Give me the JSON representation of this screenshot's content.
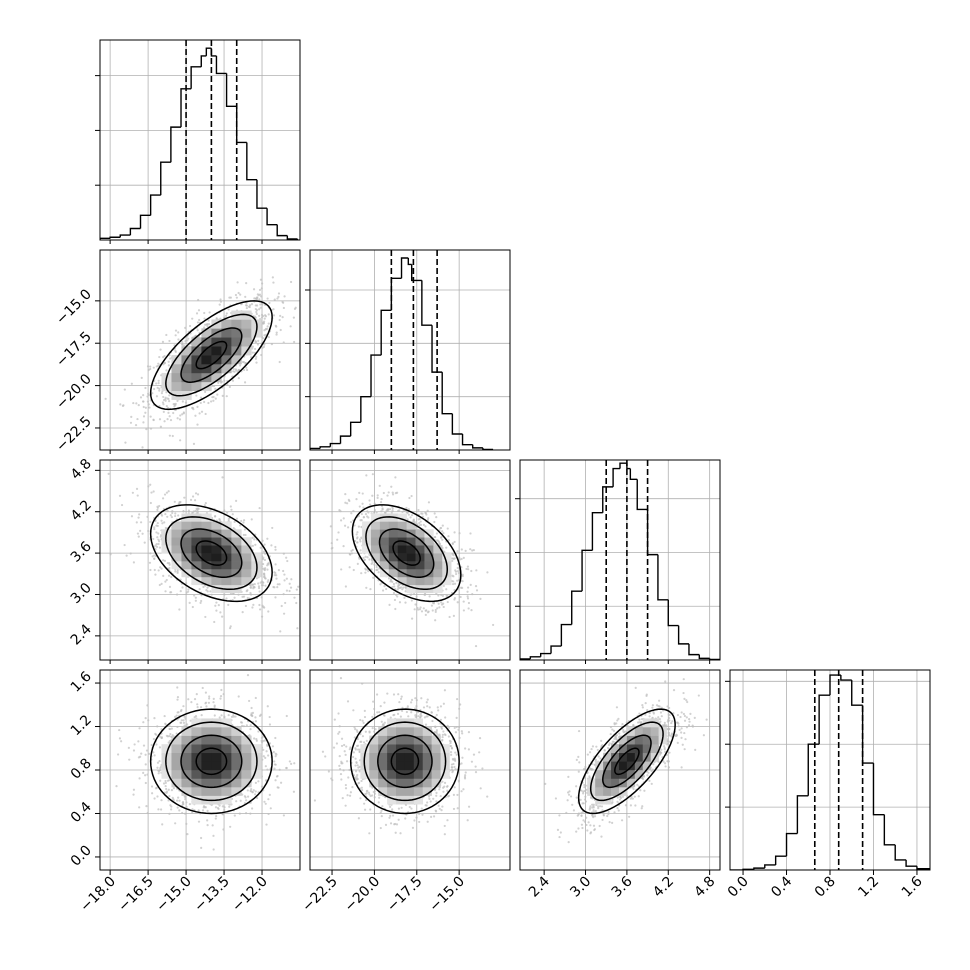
{
  "chart_data": {
    "type": "scatter",
    "layout": "corner-plot",
    "style": {
      "grid": true,
      "line_color": "#000000",
      "hist_style": "step",
      "scatter_color": "#bdbdbd",
      "density_colormap": "greys",
      "quantile_line_style": "dashed"
    },
    "parameters": [
      {
        "range": [
          -18.4,
          -10.5
        ],
        "ticks": [
          -18.0,
          -16.5,
          -15.0,
          -13.5,
          -12.0
        ],
        "tick_labels": [
          "−18.0",
          "−16.5",
          "−15.0",
          "−13.5",
          "−12.0"
        ],
        "quantiles": [
          -15.0,
          -14.0,
          -13.0
        ]
      },
      {
        "range": [
          -23.8,
          -12.0
        ],
        "ticks": [
          -22.5,
          -20.0,
          -17.5,
          -15.0
        ],
        "tick_labels": [
          "−22.5",
          "−20.0",
          "−17.5",
          "−15.0"
        ],
        "quantiles": [
          -19.0,
          -17.7,
          -16.3
        ]
      },
      {
        "range": [
          2.05,
          4.95
        ],
        "ticks": [
          2.4,
          3.0,
          3.6,
          4.2,
          4.8
        ],
        "tick_labels": [
          "2.4",
          "3.0",
          "3.6",
          "4.2",
          "4.8"
        ],
        "quantiles": [
          3.3,
          3.6,
          3.9
        ]
      },
      {
        "range": [
          -0.12,
          1.72
        ],
        "ticks": [
          0.0,
          0.4,
          0.8,
          1.2,
          1.6
        ],
        "tick_labels": [
          "0.0",
          "0.4",
          "0.8",
          "1.2",
          "1.6"
        ],
        "quantiles": [
          0.66,
          0.88,
          1.1
        ]
      }
    ],
    "diagonal_histograms": [
      {
        "bin_edges": [
          -18.4,
          -18.0,
          -17.6,
          -17.2,
          -16.8,
          -16.4,
          -16.0,
          -15.6,
          -15.2,
          -14.8,
          -14.4,
          -14.2,
          -14.0,
          -13.8,
          -13.4,
          -13.0,
          -12.6,
          -12.2,
          -11.8,
          -11.4,
          -11.0,
          -10.6
        ],
        "counts": [
          3,
          5,
          9,
          21,
          45,
          82,
          142,
          206,
          276,
          316,
          336,
          350,
          336,
          304,
          244,
          178,
          110,
          58,
          28,
          8,
          2
        ],
        "y_ticks": [
          100,
          200,
          300
        ],
        "y_max": 365
      },
      {
        "bin_edges": [
          -23.8,
          -23.2,
          -22.6,
          -22.0,
          -21.4,
          -20.8,
          -20.2,
          -19.6,
          -19.0,
          -18.4,
          -18.0,
          -17.8,
          -17.2,
          -16.6,
          -16.0,
          -15.4,
          -14.8,
          -14.2,
          -13.6,
          -13.0
        ],
        "counts": [
          3,
          6,
          12,
          26,
          52,
          100,
          178,
          262,
          322,
          360,
          348,
          318,
          234,
          146,
          68,
          30,
          10,
          4,
          1
        ],
        "y_ticks": [
          100,
          200,
          300
        ],
        "y_max": 375
      },
      {
        "bin_edges": [
          2.05,
          2.2,
          2.35,
          2.5,
          2.65,
          2.8,
          2.95,
          3.1,
          3.25,
          3.4,
          3.5,
          3.6,
          3.65,
          3.75,
          3.9,
          4.05,
          4.2,
          4.35,
          4.5,
          4.65,
          4.8,
          4.95
        ],
        "counts": [
          2,
          6,
          12,
          26,
          66,
          128,
          204,
          274,
          322,
          356,
          366,
          356,
          336,
          280,
          196,
          112,
          64,
          30,
          10,
          3,
          1
        ],
        "y_ticks": [
          100,
          200,
          300
        ],
        "y_max": 372
      },
      {
        "bin_edges": [
          -0.12,
          0.0,
          0.1,
          0.2,
          0.3,
          0.4,
          0.5,
          0.6,
          0.7,
          0.8,
          0.9,
          1.0,
          1.1,
          1.2,
          1.3,
          1.4,
          1.5,
          1.6,
          1.72
        ],
        "counts": [
          0,
          1,
          3,
          8,
          22,
          58,
          118,
          200,
          278,
          310,
          302,
          262,
          170,
          88,
          40,
          16,
          6,
          2
        ],
        "y_ticks": [
          100,
          200,
          300
        ],
        "y_max": 318
      }
    ],
    "pair_panels": [
      {
        "row": 1,
        "col": 0,
        "mean": [
          -14.0,
          -18.2
        ],
        "std": [
          1.2,
          1.6
        ],
        "corr": 0.7
      },
      {
        "row": 2,
        "col": 0,
        "mean": [
          -14.0,
          3.6
        ],
        "std": [
          1.2,
          0.35
        ],
        "corr": -0.4
      },
      {
        "row": 2,
        "col": 1,
        "mean": [
          -18.1,
          3.6
        ],
        "std": [
          1.6,
          0.35
        ],
        "corr": -0.45
      },
      {
        "row": 3,
        "col": 0,
        "mean": [
          -14.0,
          0.88
        ],
        "std": [
          1.2,
          0.24
        ],
        "corr": 0.0
      },
      {
        "row": 3,
        "col": 1,
        "mean": [
          -18.2,
          0.88
        ],
        "std": [
          1.6,
          0.24
        ],
        "corr": 0.0
      },
      {
        "row": 3,
        "col": 2,
        "mean": [
          3.6,
          0.88
        ],
        "std": [
          0.35,
          0.24
        ],
        "corr": 0.7
      }
    ]
  }
}
